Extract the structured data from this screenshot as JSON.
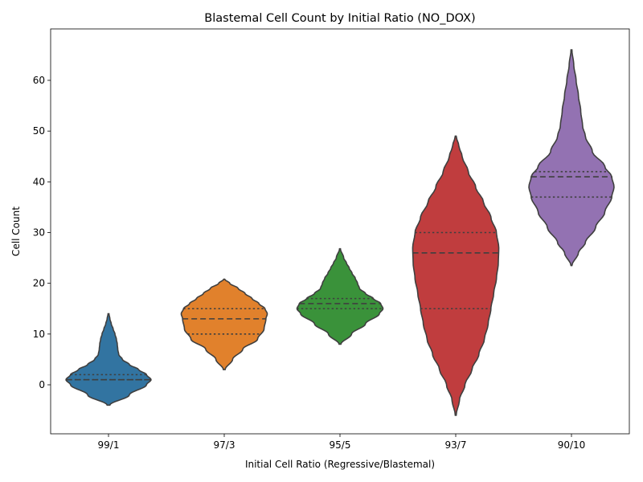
{
  "chart_data": {
    "type": "violin",
    "title": "Blastemal Cell Count by Initial Ratio (NO_DOX)",
    "xlabel": "Initial Cell Ratio (Regressive/Blastemal)",
    "ylabel": "Cell Count",
    "ylim": [
      -10,
      70
    ],
    "yticks": [
      0,
      10,
      20,
      30,
      40,
      50,
      60
    ],
    "inner": "quartile",
    "violins": [
      {
        "category": "99/1",
        "color": "#3274a1",
        "min": -4,
        "max": 14,
        "q1": 1,
        "median": 1,
        "q3": 2,
        "profile": [
          [
            -4,
            0.03
          ],
          [
            -2,
            0.45
          ],
          [
            0,
            0.82
          ],
          [
            1,
            0.92
          ],
          [
            2,
            0.82
          ],
          [
            3,
            0.65
          ],
          [
            4,
            0.45
          ],
          [
            5,
            0.3
          ],
          [
            6,
            0.22
          ],
          [
            7,
            0.2
          ],
          [
            8,
            0.19
          ],
          [
            9,
            0.17
          ],
          [
            10,
            0.14
          ],
          [
            11,
            0.1
          ],
          [
            12,
            0.06
          ],
          [
            13,
            0.03
          ],
          [
            14,
            0.01
          ]
        ]
      },
      {
        "category": "97/3",
        "color": "#e1812c",
        "min": 3,
        "max": 20.8,
        "q1": 10,
        "median": 13,
        "q3": 15,
        "profile": [
          [
            3,
            0.02
          ],
          [
            5,
            0.18
          ],
          [
            7,
            0.4
          ],
          [
            9,
            0.72
          ],
          [
            11,
            0.86
          ],
          [
            13,
            0.9
          ],
          [
            14,
            0.93
          ],
          [
            15,
            0.88
          ],
          [
            16,
            0.75
          ],
          [
            17,
            0.6
          ],
          [
            18,
            0.45
          ],
          [
            19,
            0.3
          ],
          [
            20,
            0.12
          ],
          [
            20.8,
            0.01
          ]
        ]
      },
      {
        "category": "95/5",
        "color": "#3a923a",
        "min": 8,
        "max": 26.8,
        "q1": 15,
        "median": 16,
        "q3": 17,
        "profile": [
          [
            8,
            0.02
          ],
          [
            10,
            0.25
          ],
          [
            12,
            0.55
          ],
          [
            14,
            0.85
          ],
          [
            15,
            0.93
          ],
          [
            16,
            0.88
          ],
          [
            17,
            0.72
          ],
          [
            18,
            0.55
          ],
          [
            19,
            0.42
          ],
          [
            20,
            0.38
          ],
          [
            21,
            0.33
          ],
          [
            22,
            0.26
          ],
          [
            23,
            0.2
          ],
          [
            24,
            0.14
          ],
          [
            25,
            0.08
          ],
          [
            26.8,
            0.01
          ]
        ]
      },
      {
        "category": "93/7",
        "color": "#c03d3e",
        "min": -6,
        "max": 49,
        "q1": 15,
        "median": 26,
        "q3": 30,
        "profile": [
          [
            -6,
            0.01
          ],
          [
            -3,
            0.08
          ],
          [
            0,
            0.2
          ],
          [
            3,
            0.35
          ],
          [
            6,
            0.5
          ],
          [
            9,
            0.62
          ],
          [
            12,
            0.7
          ],
          [
            15,
            0.76
          ],
          [
            18,
            0.82
          ],
          [
            21,
            0.88
          ],
          [
            24,
            0.92
          ],
          [
            27,
            0.93
          ],
          [
            30,
            0.88
          ],
          [
            33,
            0.76
          ],
          [
            36,
            0.6
          ],
          [
            39,
            0.43
          ],
          [
            42,
            0.27
          ],
          [
            45,
            0.14
          ],
          [
            47,
            0.07
          ],
          [
            49,
            0.01
          ]
        ]
      },
      {
        "category": "90/10",
        "color": "#9372b2",
        "min": 23.5,
        "max": 66,
        "q1": 37,
        "median": 41,
        "q3": 42,
        "profile": [
          [
            23.5,
            0.01
          ],
          [
            26,
            0.15
          ],
          [
            28,
            0.3
          ],
          [
            31,
            0.52
          ],
          [
            34,
            0.72
          ],
          [
            37,
            0.87
          ],
          [
            39,
            0.92
          ],
          [
            41,
            0.87
          ],
          [
            43,
            0.72
          ],
          [
            46,
            0.45
          ],
          [
            49,
            0.3
          ],
          [
            51,
            0.24
          ],
          [
            54,
            0.2
          ],
          [
            57,
            0.15
          ],
          [
            60,
            0.1
          ],
          [
            63,
            0.05
          ],
          [
            66,
            0.01
          ]
        ]
      }
    ]
  }
}
